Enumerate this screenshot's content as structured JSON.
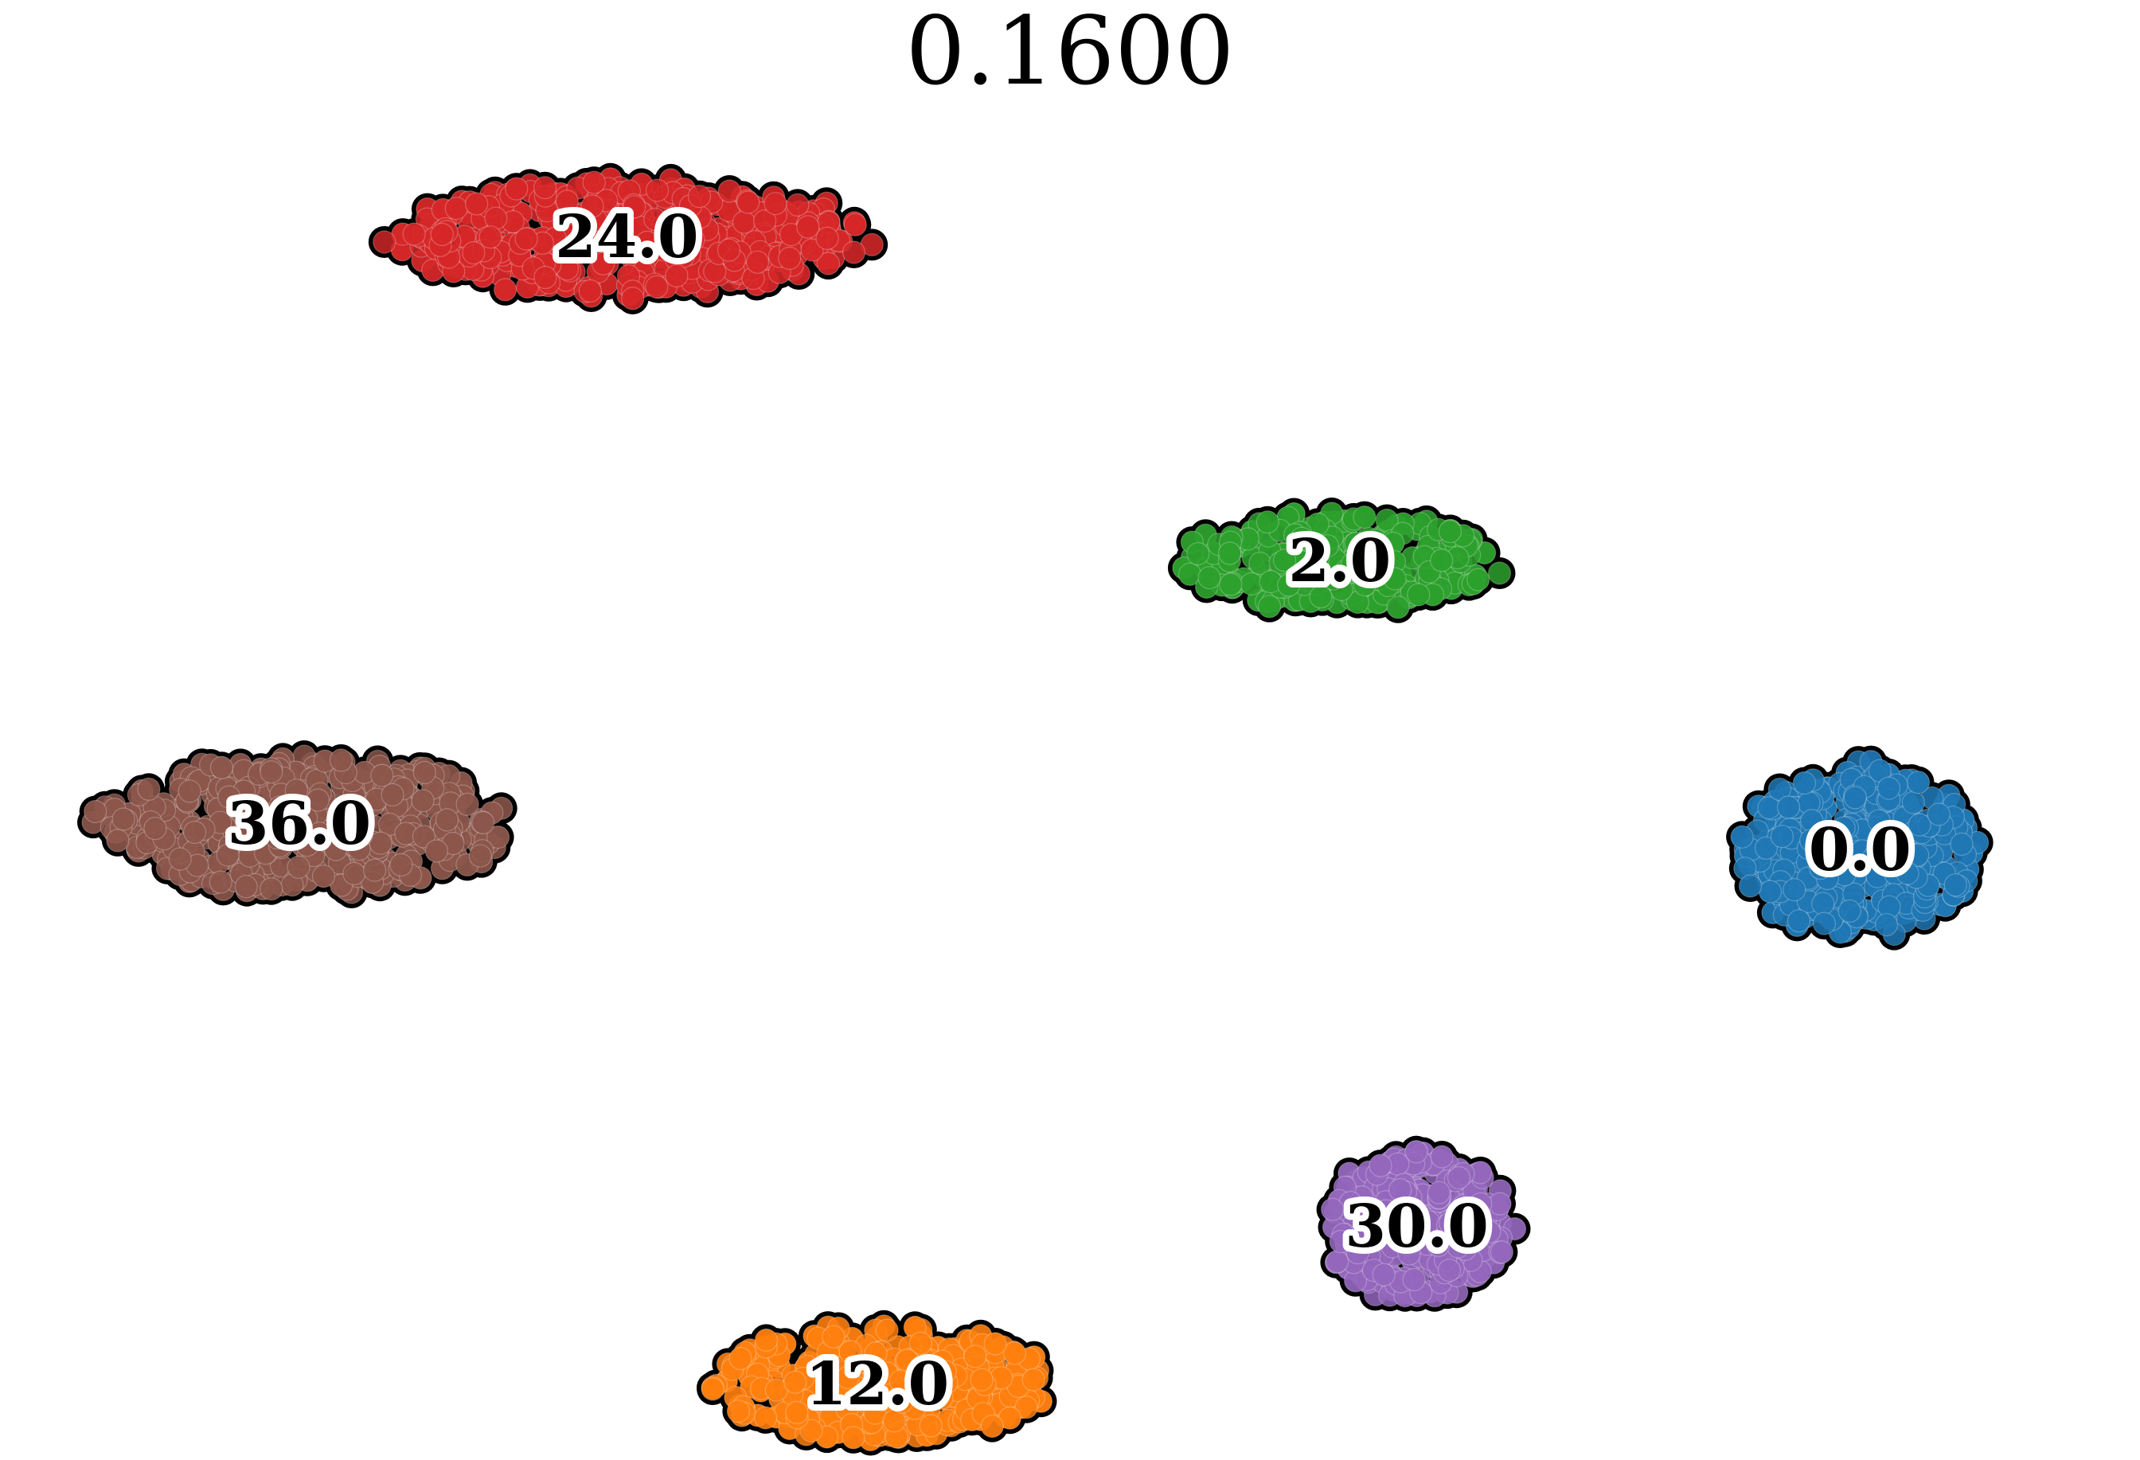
{
  "chart_data": {
    "type": "scatter",
    "title": "0.1600",
    "xlabel": "",
    "ylabel": "",
    "axes_visible": false,
    "grid": false,
    "legend": "none",
    "marker_outline_color": "#000000",
    "clusters": [
      {
        "label": "24.0",
        "color": "#d62728",
        "center": [
          -0.46,
          0.67
        ],
        "spread": [
          0.24,
          0.066
        ],
        "n_points": 420,
        "seed": 11
      },
      {
        "label": "2.0",
        "color": "#2ca02c",
        "center": [
          0.28,
          0.3
        ],
        "spread": [
          0.16,
          0.056
        ],
        "n_points": 260,
        "seed": 23
      },
      {
        "label": "36.0",
        "color": "#8c564b",
        "center": [
          -0.8,
          0.0
        ],
        "spread": [
          0.21,
          0.078
        ],
        "n_points": 460,
        "seed": 37
      },
      {
        "label": "0.0",
        "color": "#1f77b4",
        "center": [
          0.82,
          -0.03
        ],
        "spread": [
          0.12,
          0.095
        ],
        "n_points": 360,
        "seed": 41
      },
      {
        "label": "30.0",
        "color": "#9467bd",
        "center": [
          0.36,
          -0.46
        ],
        "spread": [
          0.1,
          0.084
        ],
        "n_points": 300,
        "seed": 53
      },
      {
        "label": "12.0",
        "color": "#ff7f0e",
        "center": [
          -0.2,
          -0.64
        ],
        "spread": [
          0.17,
          0.066
        ],
        "n_points": 340,
        "seed": 67
      }
    ]
  }
}
